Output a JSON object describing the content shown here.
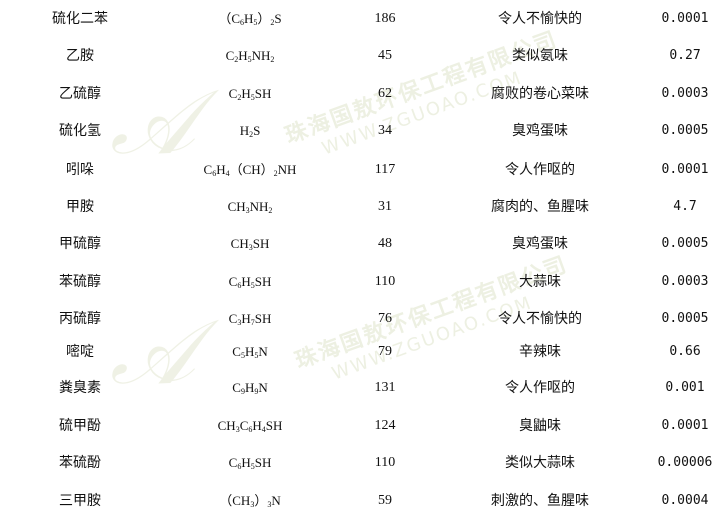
{
  "watermark": {
    "company": "珠海国敖环保工程有限公司",
    "url": "WWW.ZGUOAO.COM",
    "logo": "A"
  },
  "rows": [
    {
      "name": "硫化二苯",
      "formula": "(C6H5)2S",
      "mw": "186",
      "odor": "令人不愉快的",
      "threshold": "0.0001"
    },
    {
      "name": "乙胺",
      "formula": "C2H5NH2",
      "mw": "45",
      "odor": "类似氨味",
      "threshold": "0.27"
    },
    {
      "name": "乙硫醇",
      "formula": "C2H5SH",
      "mw": "62",
      "odor": "腐败的卷心菜味",
      "threshold": "0.0003"
    },
    {
      "name": "硫化氢",
      "formula": "H2S",
      "mw": "34",
      "odor": "臭鸡蛋味",
      "threshold": "0.0005"
    },
    {
      "name": "吲哚",
      "formula": "C6H4(CH)2NH",
      "mw": "117",
      "odor": "令人作呕的",
      "threshold": "0.0001"
    },
    {
      "name": "甲胺",
      "formula": "CH3NH2",
      "mw": "31",
      "odor": "腐肉的、鱼腥味",
      "threshold": "4.7"
    },
    {
      "name": "甲硫醇",
      "formula": "CH3SH",
      "mw": "48",
      "odor": "臭鸡蛋味",
      "threshold": "0.0005"
    },
    {
      "name": "苯硫醇",
      "formula": "C6H5SH",
      "mw": "110",
      "odor": "大蒜味",
      "threshold": "0.0003"
    },
    {
      "name": "丙硫醇",
      "formula": "C3H7SH",
      "mw": "76",
      "odor": "令人不愉快的",
      "threshold": "0.0005"
    },
    {
      "name": "嘧啶",
      "formula": "C5H5N",
      "mw": "79",
      "odor": "辛辣味",
      "threshold": "0.66"
    },
    {
      "name": "粪臭素",
      "formula": "C9H9N",
      "mw": "131",
      "odor": "令人作呕的",
      "threshold": "0.001"
    },
    {
      "name": "硫甲酚",
      "formula": "CH3C6H4SH",
      "mw": "124",
      "odor": "臭鼬味",
      "threshold": "0.0001"
    },
    {
      "name": "苯硫酚",
      "formula": "C6H5SH",
      "mw": "110",
      "odor": "类似大蒜味",
      "threshold": "0.00006"
    },
    {
      "name": "三甲胺",
      "formula": "(CH3)3N",
      "mw": "59",
      "odor": "刺激的、鱼腥味",
      "threshold": "0.0004"
    }
  ]
}
